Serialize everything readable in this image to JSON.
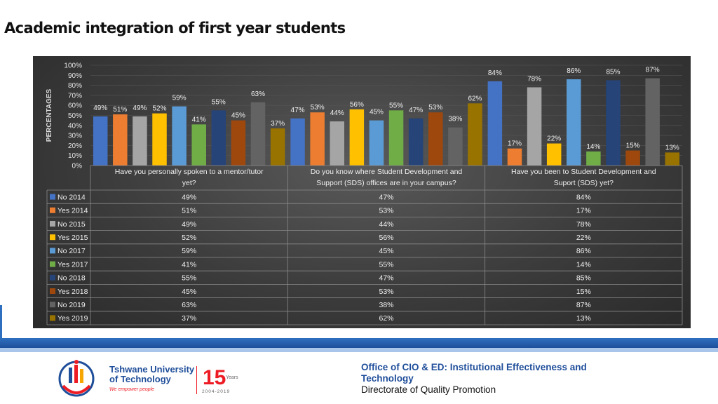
{
  "title": "Academic integration of first year students",
  "footer": {
    "office": "Office of CIO & ED: Institutional  Effectiveness and Technology",
    "directorate": "Directorate of Quality Promotion"
  },
  "logo": {
    "name_line1": "Tshwane University",
    "name_line2": "of Technology",
    "tagline": "We empower people",
    "anniversary_number": "15",
    "anniversary_word": "Years",
    "anniversary_span": "2004-2019"
  },
  "colors": {
    "panel": "#3c3c3c",
    "series": [
      "#4472c4",
      "#ed7d31",
      "#a5a5a5",
      "#ffc000",
      "#5b9bd5",
      "#70ad47",
      "#264478",
      "#9e480e",
      "#636363",
      "#997300"
    ]
  },
  "chart_data": {
    "type": "bar",
    "ylabel": "PERCENTAGES",
    "ylim": [
      0,
      100
    ],
    "yticks": [
      "0%",
      "10%",
      "20%",
      "30%",
      "40%",
      "50%",
      "60%",
      "70%",
      "80%",
      "90%",
      "100%"
    ],
    "categories": [
      [
        "Have you personally spoken to a mentor/tutor",
        "yet?"
      ],
      [
        "Do you know where Student Development and",
        "Support (SDS) offices are in your campus?"
      ],
      [
        "Have you been to Student Development and",
        "Suport (SDS) yet?"
      ]
    ],
    "series": [
      {
        "name": "No 2014",
        "values": [
          49,
          47,
          84
        ]
      },
      {
        "name": "Yes 2014",
        "values": [
          51,
          53,
          17
        ]
      },
      {
        "name": "No 2015",
        "values": [
          49,
          44,
          78
        ]
      },
      {
        "name": "Yes 2015",
        "values": [
          52,
          56,
          22
        ]
      },
      {
        "name": "No 2017",
        "values": [
          59,
          45,
          86
        ]
      },
      {
        "name": "Yes 2017",
        "values": [
          41,
          55,
          14
        ]
      },
      {
        "name": "No 2018",
        "values": [
          55,
          47,
          85
        ]
      },
      {
        "name": "Yes 2018",
        "values": [
          45,
          53,
          15
        ]
      },
      {
        "name": "No 2019",
        "values": [
          63,
          38,
          87
        ]
      },
      {
        "name": "Yes 2019",
        "values": [
          37,
          62,
          13
        ]
      }
    ],
    "grid": true,
    "data_table": true
  }
}
